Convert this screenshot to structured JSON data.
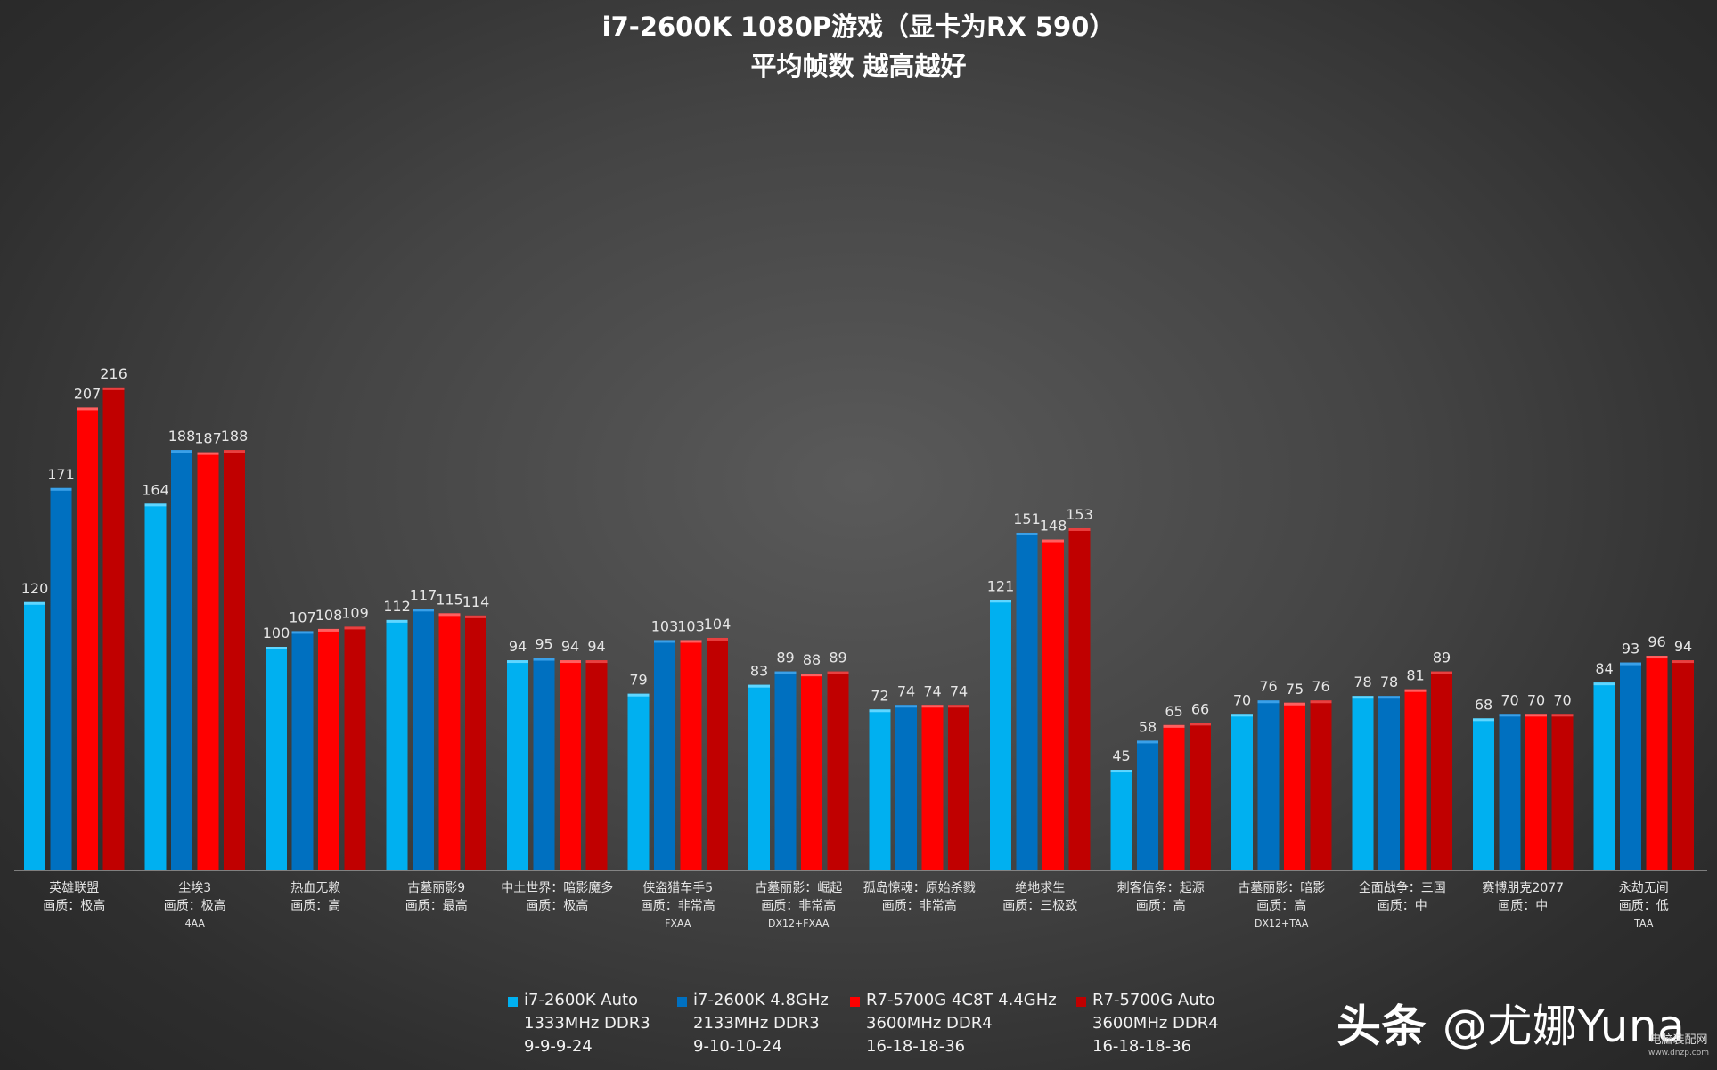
{
  "title_lines": [
    "i7-2600K 1080P游戏（显卡为RX 590）",
    "平均帧数 越高越好"
  ],
  "legend": [
    {
      "lines": [
        "i7-2600K Auto",
        "1333MHz DDR3",
        "9-9-9-24"
      ],
      "color": "#00b0f0"
    },
    {
      "lines": [
        "i7-2600K 4.8GHz",
        "2133MHz DDR3",
        "9-10-10-24"
      ],
      "color": "#0070c0"
    },
    {
      "lines": [
        "R7-5700G 4C8T 4.4GHz",
        "3600MHz DDR4",
        "16-18-18-36"
      ],
      "color": "#ff0000"
    },
    {
      "lines": [
        "R7-5700G Auto",
        "3600MHz DDR4",
        "16-18-18-36"
      ],
      "color": "#c00000"
    }
  ],
  "watermark": {
    "part1": "头条 ",
    "part2": "@尤娜Yuna"
  },
  "site_logo": {
    "cn": "电脑装配网",
    "url": "www.dnzp.com"
  },
  "chart_data": {
    "type": "bar",
    "title": "i7-2600K 1080P游戏（显卡为RX 590） 平均帧数 越高越好",
    "ylim": [
      0,
      250
    ],
    "grid": false,
    "legend_position": "bottom",
    "categories": [
      [
        "英雄联盟",
        "画质：极高"
      ],
      [
        "尘埃3",
        "画质：极高",
        "4AA"
      ],
      [
        "热血无赖",
        "画质：高"
      ],
      [
        "古墓丽影9",
        "画质：最高"
      ],
      [
        "中土世界：暗影魔多",
        "画质：极高"
      ],
      [
        "侠盗猎车手5",
        "画质：非常高",
        "FXAA"
      ],
      [
        "古墓丽影：崛起",
        "画质：非常高",
        "DX12+FXAA"
      ],
      [
        "孤岛惊魂：原始杀戮",
        "画质：非常高"
      ],
      [
        "绝地求生",
        "画质：三极致"
      ],
      [
        "刺客信条：起源",
        "画质：高"
      ],
      [
        "古墓丽影：暗影",
        "画质：高",
        "DX12+TAA"
      ],
      [
        "全面战争：三国",
        "画质：中"
      ],
      [
        "赛博朋克2077",
        "画质：中"
      ],
      [
        "永劫无间",
        "画质：低",
        "TAA"
      ]
    ],
    "series": [
      {
        "name": "i7-2600K Auto 1333MHz DDR3 9-9-9-24",
        "color": "#00b0f0",
        "highlight": "#5fd6ff",
        "values": [
          120,
          164,
          100,
          112,
          94,
          79,
          83,
          72,
          121,
          45,
          70,
          78,
          68,
          84
        ]
      },
      {
        "name": "i7-2600K 4.8GHz 2133MHz DDR3 9-10-10-24",
        "color": "#0070c0",
        "highlight": "#3aa0e8",
        "values": [
          171,
          188,
          107,
          117,
          95,
          103,
          89,
          74,
          151,
          58,
          76,
          78,
          70,
          93
        ]
      },
      {
        "name": "R7-5700G 4C8T 4.4GHz 3600MHz DDR4 16-18-18-36",
        "color": "#ff0000",
        "highlight": "#ff6060",
        "values": [
          207,
          187,
          108,
          115,
          94,
          103,
          88,
          74,
          148,
          65,
          75,
          81,
          70,
          96
        ]
      },
      {
        "name": "R7-5700G Auto 3600MHz DDR4 16-18-18-36",
        "color": "#c00000",
        "highlight": "#e84040",
        "values": [
          216,
          188,
          109,
          114,
          94,
          104,
          89,
          74,
          153,
          66,
          76,
          89,
          70,
          94
        ]
      }
    ]
  }
}
